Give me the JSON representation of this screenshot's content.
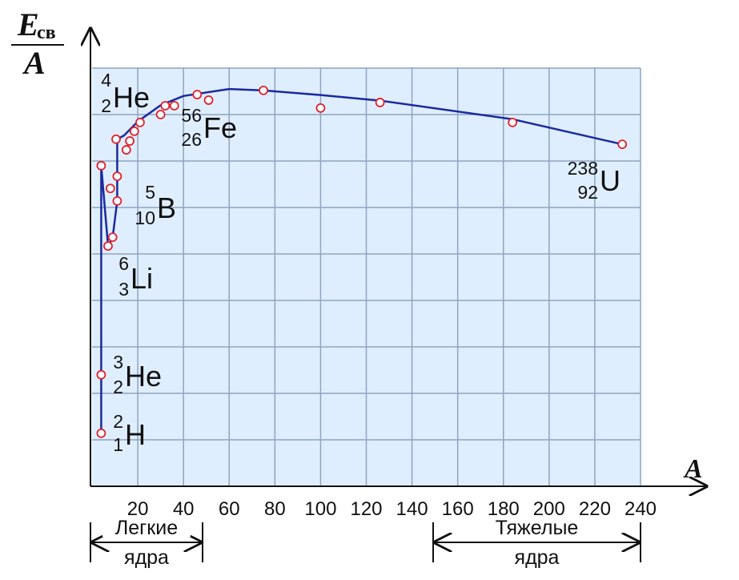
{
  "chart_data": {
    "type": "line",
    "y_label": {
      "main": "E",
      "sub": "св",
      "denominator": "A"
    },
    "x_label": "A",
    "xlim": [
      0,
      240
    ],
    "ylim": [
      0,
      9
    ],
    "xticks": [
      20,
      40,
      60,
      80,
      100,
      120,
      140,
      160,
      180,
      200,
      220,
      240
    ],
    "yticks": [
      1,
      2,
      3,
      4,
      5,
      6,
      7,
      8,
      9
    ],
    "ytick_labels": false,
    "grid": true,
    "background": "#dfeeff",
    "grid_color": "#8fa4bf",
    "series": [
      {
        "color": "#1a2aa0",
        "x": [
          4,
          4,
          4,
          7,
          9,
          11,
          11,
          14,
          20,
          30,
          40,
          60,
          75,
          100,
          126,
          184,
          232
        ],
        "values": [
          1.14,
          2.4,
          6.9,
          5.17,
          5.36,
          6.14,
          7.47,
          7.55,
          7.85,
          8.2,
          8.4,
          8.55,
          8.52,
          8.42,
          8.3,
          7.9,
          7.36
        ]
      },
      {
        "color": "#e0202a",
        "marker": "circle",
        "x": [
          4,
          4,
          4,
          7,
          9,
          8,
          11,
          11,
          10.5,
          15,
          16.5,
          18.5,
          21,
          30,
          32,
          36,
          46,
          51,
          75,
          100,
          126,
          184,
          232
        ],
        "values": [
          1.14,
          2.4,
          6.9,
          5.17,
          5.36,
          6.41,
          6.14,
          6.67,
          7.47,
          7.24,
          7.43,
          7.64,
          7.83,
          8.0,
          8.19,
          8.19,
          8.43,
          8.31,
          8.52,
          8.14,
          8.26,
          7.83,
          7.36
        ]
      }
    ],
    "annotations": [
      {
        "mass": "4",
        "charge": "2",
        "symbol": "He"
      },
      {
        "mass": "56",
        "charge": "26",
        "symbol": "Fe"
      },
      {
        "mass": "5",
        "charge": "10",
        "symbol": "B"
      },
      {
        "mass": "6",
        "charge": "3",
        "symbol": "Li"
      },
      {
        "mass": "3",
        "charge": "2",
        "symbol": "He"
      },
      {
        "mass": "2",
        "charge": "1",
        "symbol": "H"
      },
      {
        "mass": "238",
        "charge": "92",
        "symbol": "U"
      }
    ],
    "light_nuclei": [
      "Легкие",
      "ядра"
    ],
    "heavy_nuclei": [
      "Тяжелые",
      "ядра"
    ]
  }
}
